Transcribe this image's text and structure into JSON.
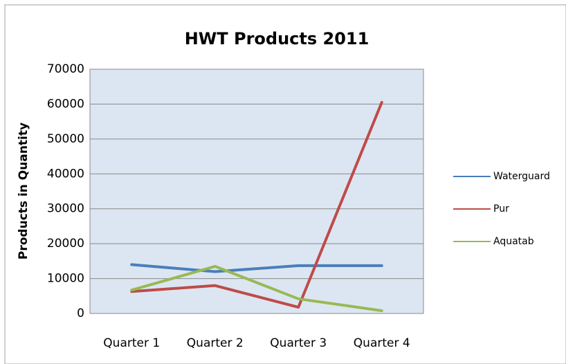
{
  "chart_data": {
    "type": "line",
    "title": "HWT Products 2011",
    "y_label": "Products in Quantity",
    "categories": [
      "Quarter 1",
      "Quarter 2",
      "Quarter 3",
      "Quarter 4"
    ],
    "series": [
      {
        "name": "Waterguard",
        "color": "#4a7ebb",
        "values": [
          14000,
          12000,
          13700,
          13700
        ]
      },
      {
        "name": "Pur",
        "color": "#be4b48",
        "values": [
          6300,
          8000,
          1800,
          60500
        ]
      },
      {
        "name": "Aquatab",
        "color": "#98b954",
        "values": [
          6700,
          13500,
          4200,
          800
        ]
      }
    ],
    "ylim": [
      0,
      70000
    ],
    "yticks": [
      0,
      10000,
      20000,
      30000,
      40000,
      50000,
      60000,
      70000
    ],
    "grid": true,
    "legend": "right"
  }
}
